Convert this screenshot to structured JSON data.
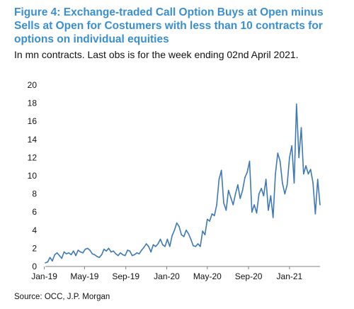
{
  "title": "Figure 4: Exchange-traded Call Option Buys at Open minus Sells at Open for Costumers with less than 10 contracts for options on individual equities",
  "subtitle": "In mn contracts. Last obs is for the week ending 02nd April 2021.",
  "source": "Source: OCC, J.P. Morgan",
  "colors": {
    "title": "#3a8fd1",
    "series": "#3f79b5",
    "axis": "#808080"
  },
  "chart_data": {
    "type": "line",
    "title": "Figure 4: Exchange-traded Call Option Buys at Open minus Sells at Open for Costumers with less than 10 contracts for options on individual equities",
    "xlabel": "",
    "ylabel": "",
    "ylim": [
      0,
      20
    ],
    "yticks": [
      "0",
      "2",
      "4",
      "6",
      "8",
      "10",
      "12",
      "14",
      "16",
      "18",
      "20"
    ],
    "xlim": [
      "2019-01-04",
      "2021-04-02"
    ],
    "xticks": [
      {
        "label": "Jan-19",
        "date": "2019-01-01"
      },
      {
        "label": "May-19",
        "date": "2019-05-01"
      },
      {
        "label": "Sep-19",
        "date": "2019-09-01"
      },
      {
        "label": "Jan-20",
        "date": "2020-01-01"
      },
      {
        "label": "May-20",
        "date": "2020-05-01"
      },
      {
        "label": "Sep-20",
        "date": "2020-09-01"
      },
      {
        "label": "Jan-21",
        "date": "2021-01-01"
      }
    ],
    "grid": false,
    "legend": "none",
    "series": [
      {
        "values": [
          [
            "2019-01-04",
            0.4
          ],
          [
            "2019-01-11",
            0.5
          ],
          [
            "2019-01-18",
            1.0
          ],
          [
            "2019-01-25",
            0.6
          ],
          [
            "2019-02-01",
            1.3
          ],
          [
            "2019-02-08",
            1.5
          ],
          [
            "2019-02-15",
            1.2
          ],
          [
            "2019-02-22",
            0.9
          ],
          [
            "2019-03-01",
            1.6
          ],
          [
            "2019-03-08",
            1.4
          ],
          [
            "2019-03-15",
            1.5
          ],
          [
            "2019-03-22",
            1.3
          ],
          [
            "2019-03-29",
            1.7
          ],
          [
            "2019-04-05",
            1.2
          ],
          [
            "2019-04-12",
            1.8
          ],
          [
            "2019-04-19",
            1.6
          ],
          [
            "2019-04-26",
            1.5
          ],
          [
            "2019-05-03",
            1.9
          ],
          [
            "2019-05-10",
            2.0
          ],
          [
            "2019-05-17",
            1.8
          ],
          [
            "2019-05-24",
            1.4
          ],
          [
            "2019-05-31",
            1.3
          ],
          [
            "2019-06-07",
            1.1
          ],
          [
            "2019-06-14",
            1.0
          ],
          [
            "2019-06-21",
            1.3
          ],
          [
            "2019-06-28",
            1.9
          ],
          [
            "2019-07-05",
            1.7
          ],
          [
            "2019-07-12",
            2.0
          ],
          [
            "2019-07-19",
            1.6
          ],
          [
            "2019-07-26",
            1.7
          ],
          [
            "2019-08-02",
            1.4
          ],
          [
            "2019-08-09",
            1.2
          ],
          [
            "2019-08-16",
            1.5
          ],
          [
            "2019-08-23",
            1.3
          ],
          [
            "2019-08-30",
            1.2
          ],
          [
            "2019-09-06",
            1.8
          ],
          [
            "2019-09-13",
            1.7
          ],
          [
            "2019-09-20",
            1.2
          ],
          [
            "2019-09-27",
            1.3
          ],
          [
            "2019-10-04",
            1.5
          ],
          [
            "2019-10-11",
            1.4
          ],
          [
            "2019-10-18",
            1.8
          ],
          [
            "2019-10-25",
            2.1
          ],
          [
            "2019-11-01",
            2.5
          ],
          [
            "2019-11-08",
            2.2
          ],
          [
            "2019-11-15",
            1.6
          ],
          [
            "2019-11-22",
            2.4
          ],
          [
            "2019-11-29",
            2.2
          ],
          [
            "2019-12-06",
            2.5
          ],
          [
            "2019-12-13",
            3.0
          ],
          [
            "2019-12-20",
            2.4
          ],
          [
            "2019-12-27",
            2.2
          ],
          [
            "2020-01-03",
            3.0
          ],
          [
            "2020-01-10",
            2.2
          ],
          [
            "2020-01-17",
            3.4
          ],
          [
            "2020-01-24",
            4.0
          ],
          [
            "2020-01-31",
            4.8
          ],
          [
            "2020-02-07",
            4.4
          ],
          [
            "2020-02-14",
            3.5
          ],
          [
            "2020-02-21",
            3.3
          ],
          [
            "2020-02-28",
            4.0
          ],
          [
            "2020-03-06",
            3.6
          ],
          [
            "2020-03-13",
            3.0
          ],
          [
            "2020-03-20",
            2.3
          ],
          [
            "2020-03-27",
            2.2
          ],
          [
            "2020-04-03",
            2.5
          ],
          [
            "2020-04-10",
            2.2
          ],
          [
            "2020-04-17",
            3.9
          ],
          [
            "2020-04-24",
            3.5
          ],
          [
            "2020-05-01",
            5.2
          ],
          [
            "2020-05-08",
            5.0
          ],
          [
            "2020-05-15",
            5.8
          ],
          [
            "2020-05-22",
            5.6
          ],
          [
            "2020-05-29",
            6.8
          ],
          [
            "2020-06-05",
            9.6
          ],
          [
            "2020-06-12",
            10.6
          ],
          [
            "2020-06-19",
            7.0
          ],
          [
            "2020-06-26",
            6.2
          ],
          [
            "2020-07-03",
            8.4
          ],
          [
            "2020-07-10",
            7.6
          ],
          [
            "2020-07-17",
            6.8
          ],
          [
            "2020-07-24",
            8.0
          ],
          [
            "2020-07-31",
            9.0
          ],
          [
            "2020-08-07",
            7.5
          ],
          [
            "2020-08-14",
            8.4
          ],
          [
            "2020-08-21",
            9.8
          ],
          [
            "2020-08-28",
            10.4
          ],
          [
            "2020-09-04",
            11.6
          ],
          [
            "2020-09-11",
            6.0
          ],
          [
            "2020-09-18",
            6.8
          ],
          [
            "2020-09-25",
            5.9
          ],
          [
            "2020-10-02",
            8.0
          ],
          [
            "2020-10-09",
            8.6
          ],
          [
            "2020-10-16",
            7.8
          ],
          [
            "2020-10-23",
            9.6
          ],
          [
            "2020-10-30",
            6.2
          ],
          [
            "2020-11-06",
            7.8
          ],
          [
            "2020-11-13",
            5.4
          ],
          [
            "2020-11-20",
            10.2
          ],
          [
            "2020-11-27",
            12.5
          ],
          [
            "2020-12-04",
            11.6
          ],
          [
            "2020-12-11",
            9.2
          ],
          [
            "2020-12-18",
            8.0
          ],
          [
            "2020-12-25",
            9.0
          ],
          [
            "2021-01-01",
            12.0
          ],
          [
            "2021-01-08",
            13.3
          ],
          [
            "2021-01-15",
            9.2
          ],
          [
            "2021-01-22",
            17.9
          ],
          [
            "2021-01-29",
            12.0
          ],
          [
            "2021-02-05",
            15.3
          ],
          [
            "2021-02-12",
            10.2
          ],
          [
            "2021-02-19",
            11.1
          ],
          [
            "2021-02-26",
            10.2
          ],
          [
            "2021-03-05",
            10.7
          ],
          [
            "2021-03-12",
            9.2
          ],
          [
            "2021-03-19",
            5.8
          ],
          [
            "2021-03-26",
            9.6
          ],
          [
            "2021-04-02",
            6.8
          ]
        ]
      }
    ]
  }
}
